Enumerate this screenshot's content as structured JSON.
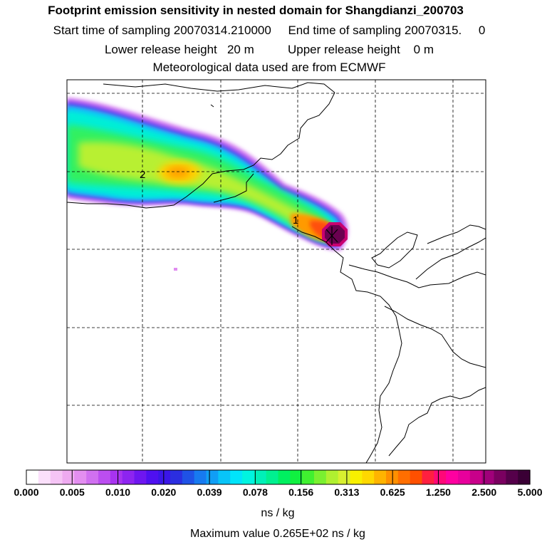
{
  "header": {
    "title": "Footprint emission sensitivity in nested domain for Shangdianzi_200703",
    "sampling_line": "Start time of sampling 20070314.210000     End time of sampling 20070315.     0",
    "release_line": "Lower release height   20 m          Upper release height    0 m",
    "met_line": "Meteorological data used are from ECMWF"
  },
  "map": {
    "labels": [
      {
        "text": "2"
      },
      {
        "text": "1"
      }
    ]
  },
  "colorbar": {
    "ticks": [
      "0.000",
      "0.005",
      "0.010",
      "0.020",
      "0.039",
      "0.078",
      "0.156",
      "0.313",
      "0.625",
      "1.250",
      "2.500",
      "5.000"
    ],
    "units": "ns / kg",
    "colors": [
      "#ffffff",
      "#fbe0fb",
      "#f5c4f5",
      "#eeaaf0",
      "#e38ef0",
      "#d070f0",
      "#bb4ef0",
      "#a833f0",
      "#8d24f0",
      "#6e16f0",
      "#4f10f0",
      "#3a16e8",
      "#2b2ee0",
      "#1f52e6",
      "#177af0",
      "#109ef5",
      "#08c4f8",
      "#00e4fa",
      "#00f4e0",
      "#00f0b8",
      "#00f090",
      "#00f060",
      "#10f040",
      "#40f030",
      "#7af030",
      "#b0f030",
      "#d8f030",
      "#f8f000",
      "#ffd800",
      "#ffb400",
      "#ff9000",
      "#ff6e00",
      "#ff5000",
      "#ff2040",
      "#ff0878",
      "#ff00a0",
      "#e8009c",
      "#c8008a",
      "#a0007a",
      "#7a0060",
      "#55004a",
      "#3a0035"
    ]
  },
  "footer": {
    "max_value": "Maximum value  0.265E+02 ns / kg"
  }
}
